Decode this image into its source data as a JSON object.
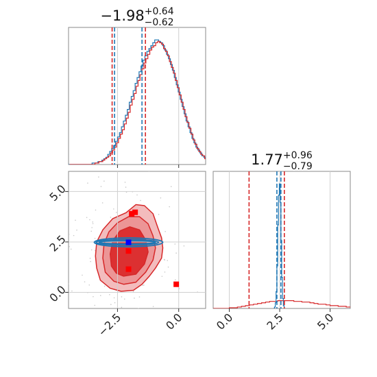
{
  "chart_data": {
    "type": "corner",
    "colors": {
      "red": "#d62728",
      "blue": "#1f77b4",
      "fill_dark": "#d62728",
      "fill_light": "#ec9596"
    },
    "panels": [
      {
        "id": "hist-param1",
        "type": "histogram",
        "title": {
          "main": "−1.98",
          "sup": "+0.64",
          "sub": "−0.62"
        },
        "xlim": [
          -4.5,
          1.1
        ],
        "series": [
          {
            "name": "",
            "color": "#1f77b4",
            "bin_start": -4.5,
            "bin_width": 0.08,
            "counts": [
              0,
              0,
              0,
              0,
              0,
              0,
              0,
              0,
              0,
              0,
              0,
              0,
              1,
              1,
              1,
              2,
              2,
              3,
              4,
              5,
              7,
              9,
              11,
              13,
              16,
              19,
              22,
              26,
              30,
              34,
              38,
              43,
              47,
              51,
              56,
              60,
              64,
              68,
              72,
              75,
              78,
              80,
              82,
              84,
              86,
              86,
              85,
              84,
              82,
              79,
              76,
              73,
              69,
              65,
              60,
              55,
              50,
              45,
              40,
              35,
              30,
              26,
              22,
              18,
              15,
              12,
              10,
              8,
              6,
              5,
              4,
              3,
              2,
              1,
              1,
              1
            ]
          },
          {
            "name": "",
            "color": "#d62728",
            "bin_start": -4.46,
            "bin_width": 0.08,
            "counts": [
              0,
              0,
              0,
              0,
              0,
              0,
              0,
              0,
              0,
              0,
              0,
              0,
              0,
              1,
              1,
              2,
              2,
              3,
              4,
              5,
              6,
              8,
              10,
              12,
              15,
              18,
              21,
              24,
              28,
              32,
              36,
              41,
              45,
              49,
              54,
              58,
              62,
              66,
              70,
              73,
              76,
              79,
              81,
              82,
              84,
              85,
              84,
              83,
              80,
              78,
              75,
              71,
              67,
              63,
              58,
              53,
              48,
              43,
              38,
              33,
              29,
              25,
              21,
              17,
              14,
              11,
              9,
              7,
              6,
              4,
              3,
              2,
              2,
              1,
              1,
              1
            ]
          }
        ],
        "quantile_lines": [
          {
            "x": -2.72,
            "color": "#d62728"
          },
          {
            "x": -2.62,
            "color": "#1f77b4"
          },
          {
            "x": -1.5,
            "color": "#1f77b4"
          },
          {
            "x": -1.36,
            "color": "#d62728"
          }
        ]
      },
      {
        "id": "hist-param2",
        "type": "histogram",
        "title": {
          "main": "1.77",
          "sup": "+0.96",
          "sub": "−0.79"
        },
        "xlim": [
          -0.8,
          6.0
        ],
        "xticks": [
          {
            "value": 0.0,
            "label": "0.0"
          },
          {
            "value": 2.5,
            "label": "2.5"
          },
          {
            "value": 5.0,
            "label": "5.0"
          }
        ],
        "series": [
          {
            "name": "",
            "color": "#d62728",
            "bin_start": -0.8,
            "bin_width": 0.2,
            "counts": [
              0,
              0,
              0,
              0,
              1,
              1,
              2,
              3,
              4,
              5,
              6,
              7,
              8,
              9,
              10,
              10,
              11,
              11,
              11,
              11,
              10,
              10,
              9,
              9,
              8,
              7,
              6,
              6,
              5,
              4,
              4,
              3,
              3,
              2,
              2,
              1,
              1,
              1,
              0,
              0
            ]
          },
          {
            "name": "",
            "color": "#1f77b4",
            "bin_start": 2.2,
            "bin_width": 0.04,
            "counts": [
              0,
              2,
              8,
              24,
              60,
              118,
              160,
              176,
              150,
              96,
              44,
              14,
              4,
              0
            ]
          }
        ],
        "quantile_lines": [
          {
            "x": 0.98,
            "color": "#d62728"
          },
          {
            "x": 2.36,
            "color": "#1f77b4"
          },
          {
            "x": 2.56,
            "color": "#1f77b4"
          },
          {
            "x": 2.73,
            "color": "#d62728"
          }
        ]
      },
      {
        "id": "joint-param1-param2",
        "type": "contour",
        "xlim": [
          -4.5,
          1.1
        ],
        "ylim": [
          -0.8,
          6.0
        ],
        "xticks": [
          {
            "value": -2.5,
            "label": "−2.5"
          },
          {
            "value": 0.0,
            "label": "0.0"
          }
        ],
        "yticks": [
          {
            "value": 0.0,
            "label": "0.0"
          },
          {
            "value": 2.5,
            "label": "2.5"
          },
          {
            "value": 5.0,
            "label": "5.0"
          }
        ],
        "red_contours": [
          {
            "level": "outer",
            "fill": "#f3bcbd",
            "points": [
              [
                -3.2,
                0.6
              ],
              [
                -3.35,
                1.2
              ],
              [
                -3.4,
                1.8
              ],
              [
                -3.35,
                2.5
              ],
              [
                -3.1,
                3.1
              ],
              [
                -2.7,
                3.65
              ],
              [
                -2.15,
                3.95
              ],
              [
                -1.75,
                4.35
              ],
              [
                -1.4,
                4.3
              ],
              [
                -1.05,
                3.9
              ],
              [
                -0.85,
                3.2
              ],
              [
                -0.7,
                2.7
              ],
              [
                -0.65,
                2.2
              ],
              [
                -0.7,
                1.7
              ],
              [
                -0.95,
                1.2
              ],
              [
                -1.2,
                0.8
              ],
              [
                -1.5,
                0.4
              ],
              [
                -1.85,
                0.1
              ],
              [
                -2.35,
                0.05
              ],
              [
                -2.8,
                0.2
              ]
            ]
          },
          {
            "level": "middle",
            "fill": "#ec9596",
            "points": [
              [
                -3.0,
                1.0
              ],
              [
                -3.1,
                1.7
              ],
              [
                -3.05,
                2.4
              ],
              [
                -2.85,
                3.0
              ],
              [
                -2.5,
                3.45
              ],
              [
                -2.05,
                3.75
              ],
              [
                -1.6,
                3.75
              ],
              [
                -1.25,
                3.4
              ],
              [
                -1.05,
                2.8
              ],
              [
                -0.95,
                2.2
              ],
              [
                -1.05,
                1.6
              ],
              [
                -1.35,
                1.0
              ],
              [
                -1.75,
                0.5
              ],
              [
                -2.25,
                0.4
              ],
              [
                -2.65,
                0.55
              ]
            ]
          },
          {
            "level": "inner",
            "fill": "#dc3031",
            "points": [
              [
                -2.75,
                1.3
              ],
              [
                -2.8,
                1.9
              ],
              [
                -2.7,
                2.55
              ],
              [
                -2.4,
                3.05
              ],
              [
                -2.0,
                3.25
              ],
              [
                -1.6,
                3.1
              ],
              [
                -1.35,
                2.6
              ],
              [
                -1.25,
                2.0
              ],
              [
                -1.4,
                1.4
              ],
              [
                -1.75,
                0.9
              ],
              [
                -2.25,
                0.8
              ],
              [
                -2.55,
                0.95
              ]
            ]
          }
        ],
        "blue_rings": [
          {
            "cx": -2.1,
            "cy": 2.48,
            "rx": 1.15,
            "ry": 0.08
          },
          {
            "cx": -2.1,
            "cy": 2.48,
            "rx": 1.28,
            "ry": 0.14
          },
          {
            "cx": -2.05,
            "cy": 2.48,
            "rx": 1.4,
            "ry": 0.22
          }
        ],
        "red_markers": [
          [
            -1.92,
            3.9
          ],
          [
            -1.78,
            3.97
          ],
          [
            -2.05,
            2.05
          ],
          [
            -2.05,
            1.15
          ],
          [
            -0.1,
            0.4
          ]
        ],
        "blue_markers": [
          [
            -2.05,
            2.48
          ]
        ]
      }
    ]
  }
}
